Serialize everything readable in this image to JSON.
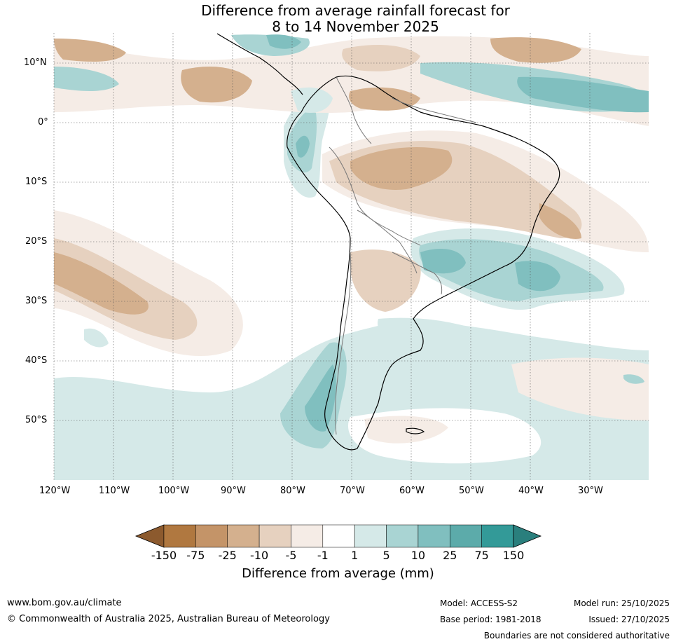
{
  "title": {
    "line1": "Difference from average rainfall forecast for",
    "line2": "8 to 14 November 2025"
  },
  "map": {
    "region": "South America",
    "lat_labels": [
      "10°N",
      "0°",
      "10°S",
      "20°S",
      "30°S",
      "40°S",
      "50°S"
    ],
    "lon_labels": [
      "120°W",
      "110°W",
      "100°W",
      "90°W",
      "80°W",
      "70°W",
      "60°W",
      "50°W",
      "40°W",
      "30°W"
    ]
  },
  "colorbar": {
    "ticks": [
      "-150",
      "-75",
      "-25",
      "-10",
      "-5",
      "-1",
      "1",
      "5",
      "10",
      "25",
      "75",
      "150"
    ],
    "colors": [
      "#8c5a2e",
      "#b07840",
      "#c49468",
      "#d4b08e",
      "#e6d1bf",
      "#f5ece6",
      "#ffffff",
      "#d5e9e8",
      "#a9d4d3",
      "#80bfbf",
      "#5cabaa",
      "#339a98",
      "#2a7f7d"
    ],
    "label": "Difference from average (mm)"
  },
  "footer": {
    "url": "www.bom.gov.au/climate",
    "copyright": "© Commonwealth of Australia 2025, Australian Bureau of Meteorology",
    "model": "Model: ACCESS-S2",
    "base_period": "Base period: 1981-2018",
    "model_run": "Model run: 25/10/2025",
    "issued": "Issued: 27/10/2025",
    "disclaimer": "Boundaries are not considered authoritative"
  }
}
